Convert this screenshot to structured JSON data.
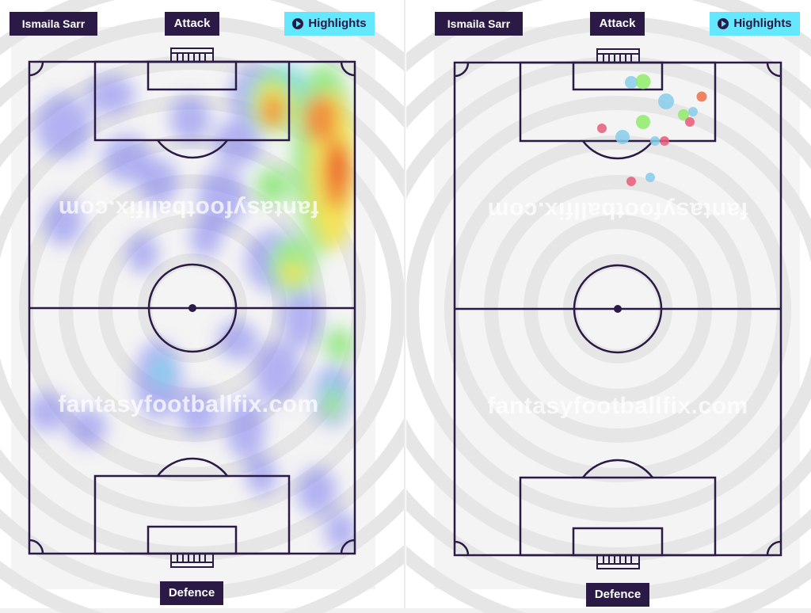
{
  "player_name": "Ismaila Sarr",
  "attack_label": "Attack",
  "defence_label": "Defence",
  "highlights_label": "Highlights",
  "watermark": "fantasyfootballfix.com",
  "icons": {
    "highlights": "play-circle-icon"
  },
  "colors": {
    "label_bg": "#2b1a45",
    "highlights_bg": "#64e8ff",
    "pitch_lines": "#2b1a45"
  }
}
